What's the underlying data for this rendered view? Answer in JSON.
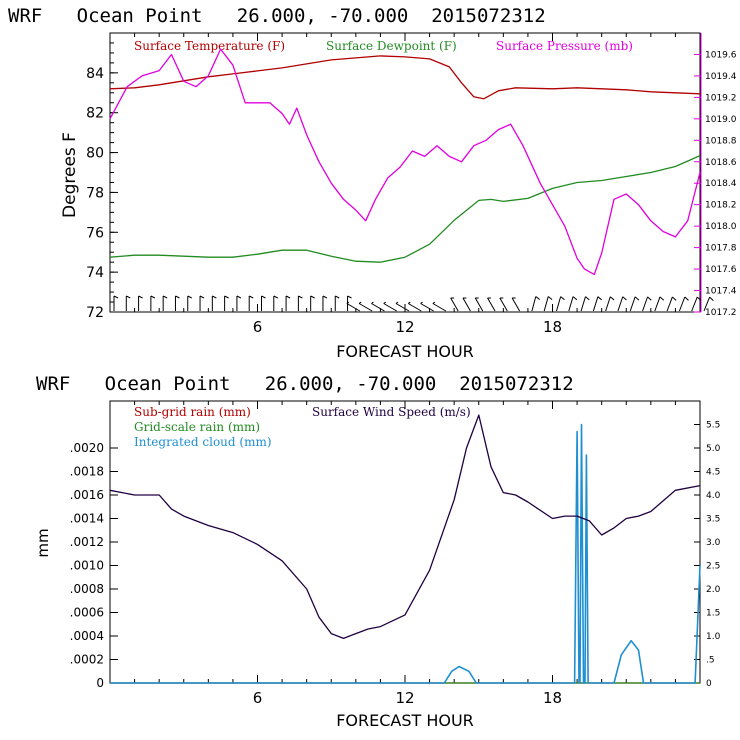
{
  "colors": {
    "temperature": "#b00000",
    "dewpoint": "#228b22",
    "pressure": "#e000e0",
    "subgrid_rain": "#b00000",
    "gridscale_rain": "#228b22",
    "cloud": "#1e8fd0",
    "wind": "#200040",
    "frame": "#000000"
  },
  "chart_data": [
    {
      "type": "line",
      "title": "WRF   Ocean Point   26.000, -70.000  2015072312",
      "xlabel": "FORECAST HOUR",
      "ylabel": "Degrees F",
      "xlim": [
        0,
        24
      ],
      "ylim": [
        72,
        86
      ],
      "y2lim": [
        1017.2,
        1019.8
      ],
      "x_ticks": [
        6,
        12,
        18
      ],
      "y_ticks": [
        72,
        74,
        76,
        78,
        80,
        82,
        84
      ],
      "y2_ticks": [
        "1017.2",
        "1017.4",
        "1017.6",
        "1017.8",
        "1018.0",
        "1018.2",
        "1018.4",
        "1018.6",
        "1018.8",
        "1019.0",
        "1019.2",
        "1019.4",
        "1019.6"
      ],
      "legend": [
        "Surface Temperature (F)",
        "Surface Dewpoint (F)",
        "Surface Pressure (mb)"
      ],
      "series": [
        {
          "name": "Surface Temperature (F)",
          "axis": "left",
          "points": [
            [
              0,
              83.2
            ],
            [
              1,
              83.25
            ],
            [
              2,
              83.4
            ],
            [
              3,
              83.6
            ],
            [
              4,
              83.8
            ],
            [
              5,
              83.95
            ],
            [
              6,
              84.1
            ],
            [
              7,
              84.25
            ],
            [
              8,
              84.45
            ],
            [
              9,
              84.65
            ],
            [
              10,
              84.75
            ],
            [
              11,
              84.85
            ],
            [
              12,
              84.8
            ],
            [
              13,
              84.7
            ],
            [
              13.8,
              84.3
            ],
            [
              14.3,
              83.5
            ],
            [
              14.8,
              82.8
            ],
            [
              15.2,
              82.7
            ],
            [
              15.8,
              83.1
            ],
            [
              16.5,
              83.25
            ],
            [
              18,
              83.2
            ],
            [
              19,
              83.25
            ],
            [
              20,
              83.2
            ],
            [
              21,
              83.15
            ],
            [
              22,
              83.05
            ],
            [
              23,
              83.0
            ],
            [
              24,
              82.95
            ]
          ]
        },
        {
          "name": "Surface Dewpoint (F)",
          "axis": "left",
          "points": [
            [
              0,
              74.75
            ],
            [
              1,
              74.85
            ],
            [
              2,
              74.85
            ],
            [
              3,
              74.8
            ],
            [
              4,
              74.75
            ],
            [
              5,
              74.75
            ],
            [
              6,
              74.9
            ],
            [
              7,
              75.1
            ],
            [
              8,
              75.1
            ],
            [
              9,
              74.8
            ],
            [
              10,
              74.55
            ],
            [
              11,
              74.5
            ],
            [
              12,
              74.75
            ],
            [
              13,
              75.4
            ],
            [
              14,
              76.6
            ],
            [
              15,
              77.6
            ],
            [
              15.5,
              77.65
            ],
            [
              16,
              77.55
            ],
            [
              17,
              77.7
            ],
            [
              18,
              78.2
            ],
            [
              19,
              78.5
            ],
            [
              20,
              78.6
            ],
            [
              21,
              78.8
            ],
            [
              22,
              79.0
            ],
            [
              23,
              79.3
            ],
            [
              24,
              79.85
            ]
          ]
        },
        {
          "name": "Surface Pressure (mb)",
          "axis": "right",
          "points": [
            [
              0,
              1019.0
            ],
            [
              0.7,
              1019.3
            ],
            [
              1.3,
              1019.4
            ],
            [
              2,
              1019.45
            ],
            [
              2.5,
              1019.6
            ],
            [
              3,
              1019.35
            ],
            [
              3.5,
              1019.3
            ],
            [
              4,
              1019.4
            ],
            [
              4.5,
              1019.65
            ],
            [
              5,
              1019.5
            ],
            [
              5.5,
              1019.15
            ],
            [
              6,
              1019.15
            ],
            [
              6.5,
              1019.15
            ],
            [
              7,
              1019.05
            ],
            [
              7.3,
              1018.95
            ],
            [
              7.6,
              1019.1
            ],
            [
              8,
              1018.85
            ],
            [
              8.5,
              1018.6
            ],
            [
              9,
              1018.4
            ],
            [
              9.5,
              1018.25
            ],
            [
              10,
              1018.15
            ],
            [
              10.4,
              1018.05
            ],
            [
              10.8,
              1018.25
            ],
            [
              11.3,
              1018.45
            ],
            [
              11.8,
              1018.55
            ],
            [
              12.3,
              1018.7
            ],
            [
              12.8,
              1018.65
            ],
            [
              13.3,
              1018.75
            ],
            [
              13.8,
              1018.65
            ],
            [
              14.3,
              1018.6
            ],
            [
              14.8,
              1018.75
            ],
            [
              15.3,
              1018.8
            ],
            [
              15.8,
              1018.9
            ],
            [
              16.3,
              1018.95
            ],
            [
              16.8,
              1018.75
            ],
            [
              17.5,
              1018.4
            ],
            [
              18,
              1018.2
            ],
            [
              18.5,
              1018.0
            ],
            [
              19,
              1017.7
            ],
            [
              19.3,
              1017.6
            ],
            [
              19.7,
              1017.55
            ],
            [
              20,
              1017.75
            ],
            [
              20.5,
              1018.25
            ],
            [
              21,
              1018.3
            ],
            [
              21.5,
              1018.2
            ],
            [
              22,
              1018.05
            ],
            [
              22.5,
              1017.95
            ],
            [
              23,
              1017.9
            ],
            [
              23.5,
              1018.05
            ],
            [
              24,
              1018.5
            ]
          ]
        }
      ]
    },
    {
      "type": "line",
      "title": "WRF   Ocean Point   26.000, -70.000  2015072312",
      "xlabel": "FORECAST HOUR",
      "ylabel": "mm",
      "xlim": [
        0,
        24
      ],
      "ylim": [
        0,
        0.0024
      ],
      "y2lim": [
        0,
        6.0
      ],
      "x_ticks": [
        6,
        12,
        18
      ],
      "y_tick_labels": [
        "0",
        ".0002",
        ".0004",
        ".0006",
        ".0008",
        ".0010",
        ".0012",
        ".0014",
        ".0016",
        ".0018",
        ".0020"
      ],
      "y2_tick_labels": [
        "0",
        ".5",
        "1.0",
        "1.5",
        "2.0",
        "2.5",
        "3.0",
        "3.5",
        "4.0",
        "4.5",
        "5.0",
        "5.5"
      ],
      "legend": [
        "Sub-grid rain (mm)",
        "Grid-scale rain (mm)",
        "Integrated cloud (mm)",
        "Surface Wind Speed (m/s)"
      ],
      "series": [
        {
          "name": "Surface Wind Speed (m/s)",
          "axis": "right",
          "points": [
            [
              0,
              4.1
            ],
            [
              1,
              4.0
            ],
            [
              2,
              4.0
            ],
            [
              2.5,
              3.7
            ],
            [
              3,
              3.55
            ],
            [
              4,
              3.35
            ],
            [
              5,
              3.2
            ],
            [
              6,
              2.95
            ],
            [
              7,
              2.6
            ],
            [
              8,
              2.0
            ],
            [
              8.5,
              1.4
            ],
            [
              9,
              1.05
            ],
            [
              9.5,
              0.95
            ],
            [
              10,
              1.05
            ],
            [
              10.5,
              1.15
            ],
            [
              11,
              1.2
            ],
            [
              12,
              1.45
            ],
            [
              13,
              2.4
            ],
            [
              14,
              3.9
            ],
            [
              14.5,
              5.0
            ],
            [
              15,
              5.7
            ],
            [
              15.5,
              4.6
            ],
            [
              16,
              4.05
            ],
            [
              16.5,
              4.0
            ],
            [
              17,
              3.85
            ],
            [
              18,
              3.5
            ],
            [
              18.5,
              3.55
            ],
            [
              19,
              3.55
            ],
            [
              19.5,
              3.45
            ],
            [
              20,
              3.15
            ],
            [
              20.5,
              3.3
            ],
            [
              21,
              3.5
            ],
            [
              21.5,
              3.55
            ],
            [
              22,
              3.65
            ],
            [
              23,
              4.1
            ],
            [
              24,
              4.2
            ]
          ]
        },
        {
          "name": "Integrated cloud (mm)",
          "axis": "right",
          "points": [
            [
              0,
              0
            ],
            [
              13.6,
              0
            ],
            [
              13.9,
              0.25
            ],
            [
              14.2,
              0.35
            ],
            [
              14.6,
              0.25
            ],
            [
              14.9,
              0
            ],
            [
              18.9,
              0
            ],
            [
              19.0,
              5.35
            ],
            [
              19.08,
              0
            ],
            [
              19.12,
              0
            ],
            [
              19.18,
              5.5
            ],
            [
              19.26,
              0
            ],
            [
              19.32,
              0
            ],
            [
              19.38,
              4.85
            ],
            [
              19.45,
              0
            ],
            [
              20.5,
              0
            ],
            [
              20.8,
              0.6
            ],
            [
              21.2,
              0.9
            ],
            [
              21.5,
              0.7
            ],
            [
              21.7,
              0
            ],
            [
              23.8,
              0
            ],
            [
              24.0,
              2.5
            ]
          ]
        },
        {
          "name": "Sub-grid rain (mm)",
          "axis": "left",
          "points": [
            [
              0,
              0
            ],
            [
              24,
              0
            ]
          ]
        },
        {
          "name": "Grid-scale rain (mm)",
          "axis": "left",
          "points": [
            [
              0,
              0
            ],
            [
              24,
              0
            ]
          ]
        }
      ]
    }
  ]
}
